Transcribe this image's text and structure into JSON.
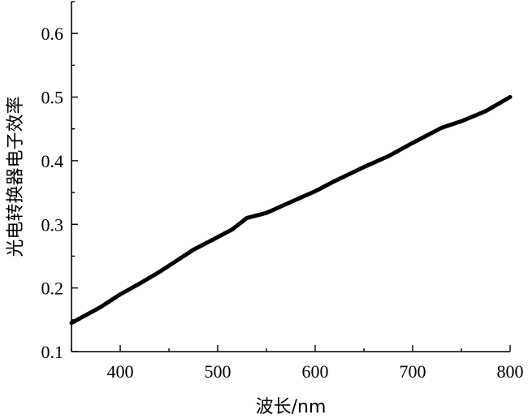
{
  "chart_data": {
    "type": "line",
    "xlabel": "波长/nm",
    "ylabel": "光电转换器电子效率",
    "xlim": [
      350,
      800
    ],
    "ylim": [
      0.1,
      0.65
    ],
    "x_ticks": [
      400,
      500,
      600,
      700,
      800
    ],
    "y_ticks": [
      0.1,
      0.2,
      0.3,
      0.4,
      0.5,
      0.6
    ],
    "x_tick_labels": [
      "400",
      "500",
      "600",
      "700",
      "800"
    ],
    "y_tick_labels": [
      "0.1",
      "0.2",
      "0.3",
      "0.4",
      "0.5",
      "0.6"
    ],
    "grid": false,
    "legend": "none",
    "line_color": "#000000",
    "series": [
      {
        "x": [
          350,
          380,
          400,
          420,
          440,
          455,
          475,
          495,
          515,
          530,
          550,
          575,
          600,
          620,
          650,
          675,
          700,
          730,
          750,
          775,
          800
        ],
        "y": [
          0.145,
          0.17,
          0.19,
          0.207,
          0.225,
          0.24,
          0.26,
          0.276,
          0.292,
          0.31,
          0.318,
          0.335,
          0.352,
          0.368,
          0.39,
          0.407,
          0.428,
          0.452,
          0.462,
          0.478,
          0.5
        ]
      }
    ]
  }
}
